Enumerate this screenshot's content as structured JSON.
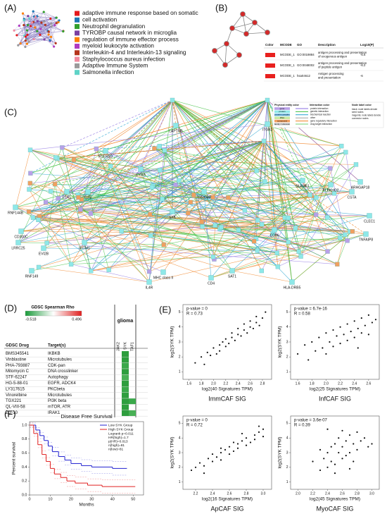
{
  "panels": {
    "A": {
      "label": "(A)",
      "legend": [
        {
          "name": "adaptive immune response based on somatic",
          "color": "#e41a1c"
        },
        {
          "name": "cell activation",
          "color": "#1f78b4"
        },
        {
          "name": "Neutrophil degranulation",
          "color": "#33a02c"
        },
        {
          "name": "TYROBP causal network in microglia",
          "color": "#7b3fa0"
        },
        {
          "name": "regulation of immune effector process",
          "color": "#ff7f00"
        },
        {
          "name": "myeloid leukocyte activation",
          "color": "#b03cc0"
        },
        {
          "name": "Interleukin-4 and Interleukin-13 signaling",
          "color": "#b5341c"
        },
        {
          "name": "Staphylococcus aureus infection",
          "color": "#f08aa0"
        },
        {
          "name": "Adaptive Immune System",
          "color": "#9a9a9a"
        },
        {
          "name": "Salmonella infection",
          "color": "#5fd3c7"
        }
      ]
    },
    "B": {
      "label": "(B)",
      "table": {
        "headers": [
          "Color",
          "MCODE",
          "GO",
          "Description",
          "Log10(P)"
        ],
        "row_color": "#e8201e",
        "rows": [
          [
            "MCODE_1",
            "GO:0019884",
            "antigen processing and presentation of exogenous antigen",
            -6.6
          ],
          [
            "MCODE_1",
            "GO:0048002",
            "antigen processing and presentation of peptide antigen",
            -6.2
          ],
          [
            "MCODE_1",
            "hsa04612",
            "Antigen processing and presentation",
            -6.0
          ]
        ]
      }
    },
    "C": {
      "label": "(C)",
      "nodes": [
        {
          "label": "C1RL",
          "color": "#000000"
        },
        {
          "label": "C1S",
          "color": "#000000"
        },
        {
          "label": "RNF144B",
          "color": "#000000"
        },
        {
          "label": "CD300C",
          "color": "#000000"
        },
        {
          "label": "LRRC25",
          "color": "#000000"
        },
        {
          "label": "EVI2B",
          "color": "#d020d0"
        },
        {
          "label": "RNF149",
          "color": "#000000"
        },
        {
          "label": "IFITM1",
          "color": "#000000"
        },
        {
          "label": "CD4",
          "color": "#000000"
        },
        {
          "label": "IL4R",
          "color": "#000000"
        },
        {
          "label": "MHC class II",
          "color": "#d020d0"
        },
        {
          "label": "SLAMF1",
          "color": "#000000"
        },
        {
          "label": "PLEKHO2",
          "color": "#d020d0"
        },
        {
          "label": "CSTA",
          "color": "#000000"
        },
        {
          "label": "ARHGAP18",
          "color": "#000000"
        },
        {
          "label": "CLEC1",
          "color": "#000000"
        },
        {
          "label": "CD86",
          "color": "#000000"
        },
        {
          "label": "SAT1",
          "color": "#000000"
        },
        {
          "label": "HLA-DRB5",
          "color": "#d020d0"
        },
        {
          "label": "TNFAIP8",
          "color": "#000000"
        },
        {
          "label": "LAPTM5",
          "color": "#000000"
        },
        {
          "label": "ITGB2",
          "color": "#000000"
        },
        {
          "label": "FCER1G",
          "color": "#000000"
        },
        {
          "label": "CYBB",
          "color": "#000000"
        },
        {
          "label": "TYROBP",
          "color": "#d020d0"
        },
        {
          "label": "SYK",
          "color": "#000000"
        }
      ],
      "legend": {
        "entity_title": "Physical entity color",
        "entities": [
          {
            "name": "gene",
            "color": "#b8a0e8"
          },
          {
            "name": "protein",
            "color": "#8ee8e8"
          },
          {
            "name": "protein complex",
            "color": "#7fc8f0"
          },
          {
            "name": "RNA",
            "color": "#c8e8a0"
          },
          {
            "name": "compound",
            "color": "#f0a060"
          },
          {
            "name": "family / unknown",
            "color": "#d8d8d8"
          }
        ],
        "interaction_title": "Interaction color",
        "interactions": [
          {
            "name": "protein interaction",
            "color": "#8a6ee0"
          },
          {
            "name": "genetic interaction",
            "color": "#40c040"
          },
          {
            "name": "biochemical reaction",
            "color": "#20a0d0"
          },
          {
            "name": "other",
            "color": "#a0a0a0"
          },
          {
            "name": "gene regulatory interaction",
            "color": "#f08020"
          },
          {
            "name": "drug target interaction",
            "color": "#70d070"
          }
        ],
        "label_title": "Node label color",
        "label_lines": [
          "black: node labels denote",
          "seed nodes",
          "magenta: node labels denote",
          "connector nodes"
        ]
      }
    },
    "D": {
      "label": "(D)",
      "scale_title": "GDSC Spearman Rho",
      "scale_min": "-0.518",
      "scale_max": "0.496",
      "group": "glioma",
      "genes": [
        "JAK2",
        "SYK",
        "TAF1"
      ],
      "col_headers": [
        "GDSC Drug",
        "Target(s)"
      ],
      "rows": [
        [
          "BMS345541",
          "IKBKB"
        ],
        [
          "Vinblastine",
          "Microtubules"
        ],
        [
          "PHA-793887",
          "CDK-pan"
        ],
        [
          "Mitomycin C",
          "DNA crosslinker"
        ],
        [
          "STF-62247",
          "Autophagy"
        ],
        [
          "HG-5-88-01",
          "EGFR, ADCK4"
        ],
        [
          "LY317615",
          "PKCbeta"
        ],
        [
          "Vinorelbine",
          "Microtubules"
        ],
        [
          "TGX221",
          "PI3K beta"
        ],
        [
          "QL-VIII-58",
          "mTOR, ATR"
        ],
        [
          "ZG-10",
          "IRAK1"
        ]
      ],
      "cell_colors": [
        [
          null,
          "#2e9e3e",
          null
        ],
        [
          null,
          "#2e9e3e",
          null
        ],
        [
          null,
          "#3aa84a",
          null
        ],
        [
          null,
          "#2e9e3e",
          null
        ],
        [
          null,
          "#48b055",
          null
        ],
        [
          null,
          "#2e9e3e",
          null
        ],
        [
          null,
          "#3aa84a",
          null
        ],
        [
          null,
          "#2e9e3e",
          null
        ],
        [
          null,
          "#2e9e3e",
          "#3aa84a"
        ],
        [
          null,
          "#2e9e3e",
          null
        ],
        [
          null,
          "#2e9e3e",
          "#48b055"
        ]
      ]
    },
    "E": {
      "label": "(E)",
      "plots": [
        {
          "stats": [
            "p-value = 0",
            "R = 0.73"
          ],
          "xlabel": "log2(40 Signatures TPM)",
          "ylabel": "log2(SYK TPM)",
          "title": "ImmCAF SIG",
          "xlim": [
            1.5,
            2.95
          ],
          "ylim": [
            0.5,
            5.5
          ],
          "xticks": [
            1.6,
            1.8,
            {
              "value": 2,
              "label": "2.0"
            },
            2.2,
            2.4,
            2.6,
            2.8
          ],
          "yticks": [
            1,
            2,
            3,
            4,
            5
          ],
          "x": [
            1.7,
            1.8,
            1.85,
            1.9,
            1.95,
            2.0,
            2.05,
            2.1,
            2.1,
            2.15,
            2.2,
            2.2,
            2.25,
            2.3,
            2.3,
            2.35,
            2.4,
            2.4,
            2.45,
            2.5,
            2.5,
            2.55,
            2.6,
            2.6,
            2.65,
            2.7,
            2.7,
            2.75,
            2.8,
            2.85
          ],
          "y": [
            1.6,
            2.0,
            1.5,
            2.3,
            2.1,
            2.6,
            2.2,
            2.8,
            2.4,
            3.0,
            2.7,
            3.2,
            2.9,
            3.3,
            3.6,
            3.1,
            3.5,
            3.9,
            3.4,
            3.8,
            4.2,
            3.6,
            4.0,
            4.4,
            3.9,
            4.3,
            4.7,
            4.1,
            4.6,
            5.0
          ]
        },
        {
          "stats": [
            "p-value = 6.7e-16",
            "R = 0.58"
          ],
          "xlabel": "log2(25 Signatures TPM)",
          "ylabel": "log2(SYK TPM)",
          "title": "InfCAF SIG",
          "xlim": [
            1.5,
            2.75
          ],
          "ylim": [
            0.5,
            5.5
          ],
          "xticks": [
            1.6,
            1.8,
            {
              "value": 2,
              "label": "2.0"
            },
            2.2,
            2.4,
            2.6
          ],
          "yticks": [
            1,
            2,
            3,
            4,
            5
          ],
          "x": [
            1.6,
            1.7,
            1.75,
            1.8,
            1.85,
            1.9,
            1.95,
            2.0,
            2.0,
            2.05,
            2.1,
            2.1,
            2.15,
            2.2,
            2.2,
            2.25,
            2.3,
            2.3,
            2.35,
            2.4,
            2.4,
            2.45,
            2.5,
            2.5,
            2.55,
            2.6,
            2.6,
            2.65,
            2.7,
            2.45
          ],
          "y": [
            2.2,
            2.8,
            1.8,
            3.0,
            2.4,
            3.3,
            2.6,
            3.6,
            2.2,
            3.0,
            3.8,
            2.7,
            3.4,
            4.0,
            2.9,
            3.5,
            4.2,
            3.1,
            3.7,
            4.4,
            3.3,
            3.9,
            4.6,
            3.6,
            4.1,
            4.8,
            3.5,
            4.3,
            4.5,
            2.6
          ]
        },
        {
          "stats": [
            "p-value = 0",
            "R = 0.72"
          ],
          "xlabel": "log2(16 Signatures TPM)",
          "ylabel": "log2(SYK TPM)",
          "title": "ApCAF SIG",
          "xlim": [
            2.05,
            3.1
          ],
          "ylim": [
            0.5,
            5.5
          ],
          "xticks": [
            2.2,
            2.4,
            2.6,
            2.8,
            {
              "value": 3,
              "label": "3.0"
            }
          ],
          "yticks": [
            1,
            2,
            3,
            4,
            5
          ],
          "x": [
            2.15,
            2.2,
            2.25,
            2.3,
            2.35,
            2.4,
            2.4,
            2.45,
            2.5,
            2.5,
            2.55,
            2.6,
            2.6,
            2.65,
            2.7,
            2.7,
            2.75,
            2.8,
            2.8,
            2.85,
            2.9,
            2.9,
            2.95,
            3.0,
            3.0,
            2.3,
            2.5,
            2.65,
            2.75,
            2.95
          ],
          "y": [
            1.8,
            2.0,
            2.3,
            2.1,
            2.6,
            2.4,
            2.9,
            2.7,
            3.0,
            2.5,
            3.2,
            2.9,
            3.4,
            3.1,
            3.6,
            3.3,
            3.8,
            3.5,
            4.0,
            3.7,
            4.2,
            3.9,
            4.4,
            4.6,
            4.1,
            1.6,
            3.3,
            3.7,
            4.3,
            4.8
          ]
        },
        {
          "stats": [
            "p-value = 3.6e-07",
            "R = 0.39"
          ],
          "xlabel": "log2(45 Signatures TPM)",
          "ylabel": "log2(SYK TPM)",
          "title": "MyoCAF SIG",
          "xlim": [
            1.9,
            3.1
          ],
          "ylim": [
            0.5,
            5.5
          ],
          "xticks": [
            {
              "value": 2,
              "label": "2.0"
            },
            2.2,
            2.4,
            2.6,
            2.8,
            {
              "value": 3,
              "label": "3.0"
            }
          ],
          "yticks": [
            1,
            2,
            3,
            4,
            5
          ],
          "x": [
            2.2,
            2.3,
            2.3,
            2.35,
            2.4,
            2.4,
            2.45,
            2.45,
            2.5,
            2.5,
            2.55,
            2.55,
            2.6,
            2.6,
            2.65,
            2.65,
            2.7,
            2.7,
            2.75,
            2.75,
            2.8,
            2.8,
            2.85,
            2.9,
            2.95,
            2.4,
            2.5,
            2.6,
            2.7,
            3.0
          ],
          "y": [
            2.4,
            1.8,
            3.2,
            2.6,
            3.0,
            2.0,
            3.4,
            2.4,
            3.6,
            2.2,
            3.0,
            4.0,
            2.6,
            3.4,
            3.8,
            2.8,
            4.2,
            3.0,
            3.6,
            2.4,
            4.4,
            3.2,
            3.8,
            4.0,
            3.4,
            4.6,
            1.6,
            4.5,
            1.9,
            3.6
          ]
        }
      ]
    },
    "F": {
      "label": "(F)",
      "title": "Disease Free Survival",
      "xlabel": "Months",
      "ylabel": "Percent survival",
      "xlim": [
        0,
        55
      ],
      "ylim": [
        0,
        1.05
      ],
      "xticks": [
        0,
        10,
        20,
        30,
        40,
        50
      ],
      "yticks": [
        {
          "value": 0,
          "label": "0.0"
        },
        0.2,
        0.4,
        0.6,
        0.8,
        {
          "value": 1,
          "label": "1.0"
        }
      ],
      "stats": [
        "Logrank p=0.011",
        "HR(high)=1.7",
        "p(HR)=0.013",
        "n(high)=81",
        "n(low)=81"
      ],
      "series": [
        {
          "name": "Low SYK Group",
          "color": "#2020d0",
          "times": [
            0,
            3,
            5,
            7,
            9,
            11,
            14,
            17,
            20,
            25,
            30,
            40,
            47
          ],
          "survival": [
            1,
            0.93,
            0.85,
            0.78,
            0.7,
            0.62,
            0.55,
            0.5,
            0.45,
            0.42,
            0.4,
            0.38,
            0.38
          ]
        },
        {
          "name": "High SYK Group",
          "color": "#e02020",
          "times": [
            0,
            2,
            4,
            6,
            8,
            10,
            12,
            15,
            18,
            22,
            28,
            35,
            51
          ],
          "survival": [
            1,
            0.88,
            0.72,
            0.58,
            0.48,
            0.38,
            0.3,
            0.25,
            0.2,
            0.17,
            0.14,
            0.12,
            0.12
          ]
        }
      ]
    }
  }
}
